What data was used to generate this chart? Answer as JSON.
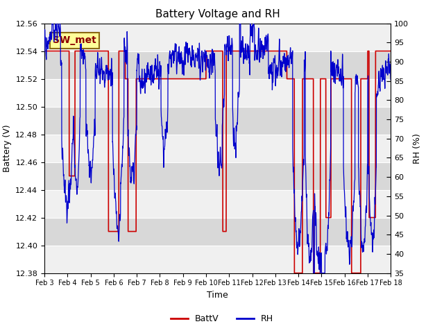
{
  "title": "Battery Voltage and RH",
  "xlabel": "Time",
  "ylabel_left": "Battery (V)",
  "ylabel_right": "RH (%)",
  "annotation": "SW_met",
  "ylim_left": [
    12.38,
    12.56
  ],
  "ylim_right": [
    35,
    100
  ],
  "yticks_left": [
    12.38,
    12.4,
    12.42,
    12.44,
    12.46,
    12.48,
    12.5,
    12.52,
    12.54,
    12.56
  ],
  "yticks_right": [
    35,
    40,
    45,
    50,
    55,
    60,
    65,
    70,
    75,
    80,
    85,
    90,
    95,
    100
  ],
  "xtick_labels": [
    "Feb 3",
    "Feb 4",
    "Feb 5",
    "Feb 6",
    "Feb 7",
    "Feb 8",
    "Feb 9",
    "Feb 10",
    "Feb 11",
    "Feb 12",
    "Feb 13",
    "Feb 14",
    "Feb 15",
    "Feb 16",
    "Feb 17",
    "Feb 18"
  ],
  "color_battv": "#cc0000",
  "color_rh": "#0000cc",
  "legend_labels": [
    "BattV",
    "RH"
  ],
  "bg_outer": "#ffffff",
  "bg_light": "#f0f0f0",
  "bg_dark": "#d8d8d8",
  "annotation_bg": "#ffff99",
  "annotation_border": "#8B6914",
  "title_fontsize": 11,
  "axis_label_fontsize": 9,
  "tick_fontsize": 8,
  "legend_fontsize": 9,
  "seed": 42,
  "n_days": 15,
  "n_points": 3000
}
